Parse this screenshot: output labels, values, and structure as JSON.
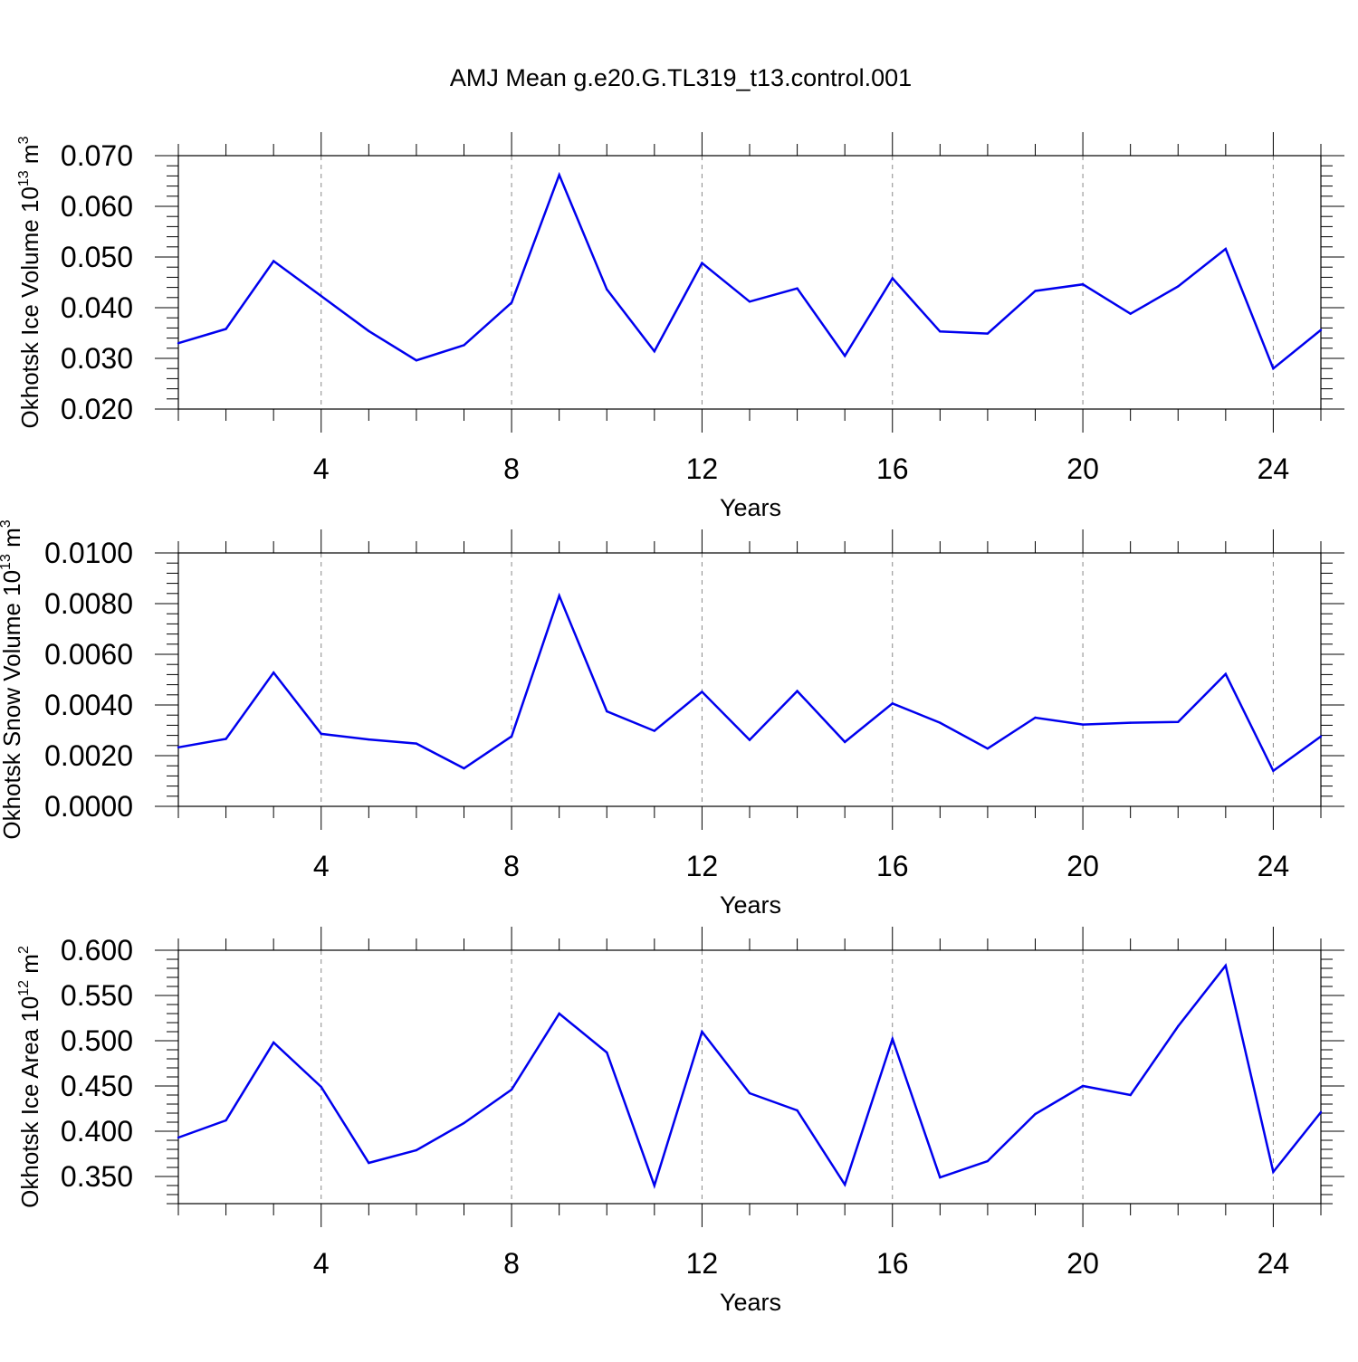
{
  "title": "AMJ Mean g.e20.G.TL319_t13.control.001",
  "colors": {
    "line": "#0000ee",
    "axis": "#000000",
    "grid": "#888888"
  },
  "chart_data": [
    {
      "type": "line",
      "title": "AMJ Mean g.e20.G.TL319_t13.control.001",
      "xlabel": "Years",
      "ylabel": {
        "prefix": "Okhotsk Ice Volume 10",
        "exponent": "13",
        "middle": " m",
        "unit_exponent": "3"
      },
      "xlim": [
        1,
        25
      ],
      "ylim": [
        0.02,
        0.07
      ],
      "x_ticks": [
        4,
        8,
        12,
        16,
        20,
        24
      ],
      "x_tick_labels": [
        "4",
        "8",
        "12",
        "16",
        "20",
        "24"
      ],
      "y_ticks": [
        0.02,
        0.03,
        0.04,
        0.05,
        0.06,
        0.07
      ],
      "y_tick_labels": [
        "0.020",
        "0.030",
        "0.040",
        "0.050",
        "0.060",
        "0.070"
      ],
      "y_minor_step": 0.002,
      "grid": "vertical dashed at major x ticks",
      "x": [
        1,
        2,
        3,
        4,
        5,
        6,
        7,
        8,
        9,
        10,
        11,
        12,
        13,
        14,
        15,
        16,
        17,
        18,
        19,
        20,
        21,
        22,
        23,
        24,
        25
      ],
      "values": [
        0.033,
        0.0358,
        0.0492,
        0.0423,
        0.0354,
        0.0296,
        0.0326,
        0.041,
        0.0662,
        0.0436,
        0.0314,
        0.0488,
        0.0412,
        0.0438,
        0.0305,
        0.0458,
        0.0353,
        0.0349,
        0.0433,
        0.0446,
        0.0388,
        0.0442,
        0.0516,
        0.028,
        0.0356
      ]
    },
    {
      "type": "line",
      "xlabel": "Years",
      "ylabel": {
        "prefix": "Okhotsk Snow Volume 10",
        "exponent": "13",
        "middle": " m",
        "unit_exponent": "3"
      },
      "xlim": [
        1,
        25
      ],
      "ylim": [
        0.0,
        0.01
      ],
      "x_ticks": [
        4,
        8,
        12,
        16,
        20,
        24
      ],
      "x_tick_labels": [
        "4",
        "8",
        "12",
        "16",
        "20",
        "24"
      ],
      "y_ticks": [
        0.0,
        0.002,
        0.004,
        0.006,
        0.008,
        0.01
      ],
      "y_tick_labels": [
        "0.0000",
        "0.0020",
        "0.0040",
        "0.0060",
        "0.0080",
        "0.0100"
      ],
      "y_minor_step": 0.0004,
      "grid": "vertical dashed at major x ticks",
      "x": [
        1,
        2,
        3,
        4,
        5,
        6,
        7,
        8,
        9,
        10,
        11,
        12,
        13,
        14,
        15,
        16,
        17,
        18,
        19,
        20,
        21,
        22,
        23,
        24,
        25
      ],
      "values": [
        0.00233,
        0.00266,
        0.00528,
        0.00286,
        0.00264,
        0.00248,
        0.0015,
        0.00276,
        0.00831,
        0.00375,
        0.00298,
        0.00452,
        0.00262,
        0.00455,
        0.00254,
        0.00406,
        0.0033,
        0.00228,
        0.0035,
        0.00323,
        0.0033,
        0.00333,
        0.00522,
        0.0014,
        0.00276
      ]
    },
    {
      "type": "line",
      "xlabel": "Years",
      "ylabel": {
        "prefix": "Okhotsk Ice Area 10",
        "exponent": "12",
        "middle": " m",
        "unit_exponent": "2"
      },
      "xlim": [
        1,
        25
      ],
      "ylim": [
        0.32,
        0.6
      ],
      "x_ticks": [
        4,
        8,
        12,
        16,
        20,
        24
      ],
      "x_tick_labels": [
        "4",
        "8",
        "12",
        "16",
        "20",
        "24"
      ],
      "y_ticks": [
        0.35,
        0.4,
        0.45,
        0.5,
        0.55,
        0.6
      ],
      "y_tick_labels": [
        "0.350",
        "0.400",
        "0.450",
        "0.500",
        "0.550",
        "0.600"
      ],
      "y_minor_step": 0.01,
      "grid": "vertical dashed at major x ticks",
      "x": [
        1,
        2,
        3,
        4,
        5,
        6,
        7,
        8,
        9,
        10,
        11,
        12,
        13,
        14,
        15,
        16,
        17,
        18,
        19,
        20,
        21,
        22,
        23,
        24,
        25
      ],
      "values": [
        0.393,
        0.412,
        0.498,
        0.449,
        0.365,
        0.379,
        0.409,
        0.446,
        0.53,
        0.487,
        0.34,
        0.51,
        0.442,
        0.423,
        0.341,
        0.502,
        0.349,
        0.367,
        0.419,
        0.45,
        0.44,
        0.516,
        0.583,
        0.355,
        0.421
      ]
    }
  ]
}
